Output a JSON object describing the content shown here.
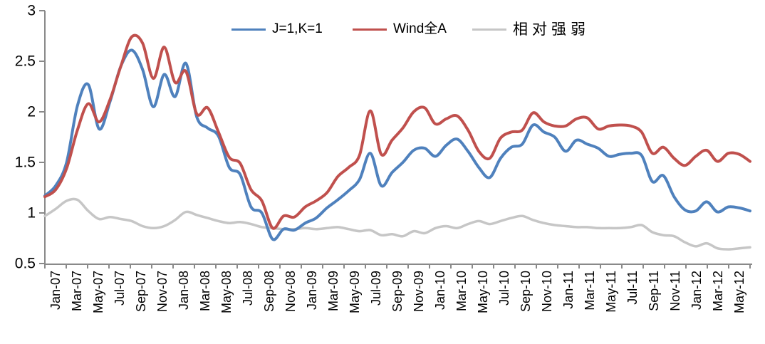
{
  "page": {
    "background": "#FFFFFF"
  },
  "chart_data": {
    "type": "line",
    "title": "",
    "xlabel": "",
    "ylabel": "",
    "grid": false,
    "legend_position": "top-center",
    "axis_color": "#898989",
    "tick_label_color": "#000000",
    "ylim": [
      0.5,
      3
    ],
    "y_ticks": [
      3,
      2.5,
      2,
      1.5,
      1,
      0.5
    ],
    "y_tick_labels": [
      "3",
      "2.5",
      "2",
      "1.5",
      "1",
      "0.5"
    ],
    "x_unit": "month",
    "x_range": [
      "Jan-07",
      "Jun-12"
    ],
    "x_tick_labels": [
      "Jan-07",
      "Mar-07",
      "May-07",
      "Jul-07",
      "Sep-07",
      "Nov-07",
      "Jan-08",
      "Mar-08",
      "May-08",
      "Jul-08",
      "Sep-08",
      "Nov-08",
      "Jan-09",
      "Mar-09",
      "May-09",
      "Jul-09",
      "Sep-09",
      "Nov-09",
      "Jan-10",
      "Mar-10",
      "May-10",
      "Jul-10",
      "Sep-10",
      "Nov-10",
      "Jan-11",
      "Mar-11",
      "May-11",
      "Jul-11",
      "Sep-11",
      "Nov-11",
      "Jan-12",
      "Mar-12",
      "May-12"
    ],
    "months": [
      "Jan-07",
      "Feb-07",
      "Mar-07",
      "Apr-07",
      "May-07",
      "Jun-07",
      "Jul-07",
      "Aug-07",
      "Sep-07",
      "Oct-07",
      "Nov-07",
      "Dec-07",
      "Jan-08",
      "Feb-08",
      "Mar-08",
      "Apr-08",
      "May-08",
      "Jun-08",
      "Jul-08",
      "Aug-08",
      "Sep-08",
      "Oct-08",
      "Nov-08",
      "Dec-08",
      "Jan-09",
      "Feb-09",
      "Mar-09",
      "Apr-09",
      "May-09",
      "Jun-09",
      "Jul-09",
      "Aug-09",
      "Sep-09",
      "Oct-09",
      "Nov-09",
      "Dec-09",
      "Jan-10",
      "Feb-10",
      "Mar-10",
      "Apr-10",
      "May-10",
      "Jun-10",
      "Jul-10",
      "Aug-10",
      "Sep-10",
      "Oct-10",
      "Nov-10",
      "Dec-10",
      "Jan-11",
      "Feb-11",
      "Mar-11",
      "Apr-11",
      "May-11",
      "Jun-11",
      "Jul-11",
      "Aug-11",
      "Sep-11",
      "Oct-11",
      "Nov-11",
      "Dec-11",
      "Jan-12",
      "Feb-12",
      "Mar-12",
      "Apr-12",
      "May-12",
      "Jun-12"
    ],
    "series": [
      {
        "key": "j1k1",
        "name": "J=1,K=1",
        "color": "#4F81BD",
        "line_width": 4,
        "values": [
          1.17,
          1.27,
          1.5,
          2.06,
          2.27,
          1.83,
          2.1,
          2.45,
          2.61,
          2.42,
          2.05,
          2.37,
          2.15,
          2.48,
          1.95,
          1.84,
          1.76,
          1.45,
          1.38,
          1.06,
          1.0,
          0.74,
          0.84,
          0.83,
          0.9,
          0.95,
          1.05,
          1.13,
          1.22,
          1.33,
          1.59,
          1.27,
          1.4,
          1.5,
          1.62,
          1.64,
          1.56,
          1.67,
          1.73,
          1.61,
          1.45,
          1.35,
          1.54,
          1.65,
          1.68,
          1.87,
          1.8,
          1.75,
          1.61,
          1.72,
          1.68,
          1.64,
          1.56,
          1.58,
          1.59,
          1.57,
          1.31,
          1.37,
          1.16,
          1.03,
          1.02,
          1.11,
          1.01,
          1.06,
          1.05,
          1.02
        ]
      },
      {
        "key": "wind-quan-a",
        "name": "Wind全A",
        "color": "#C0504D",
        "line_width": 4,
        "values": [
          1.16,
          1.23,
          1.44,
          1.82,
          2.08,
          1.9,
          2.12,
          2.45,
          2.74,
          2.68,
          2.33,
          2.64,
          2.29,
          2.4,
          1.98,
          2.04,
          1.8,
          1.55,
          1.49,
          1.23,
          1.12,
          0.85,
          0.97,
          0.96,
          1.06,
          1.12,
          1.2,
          1.36,
          1.45,
          1.57,
          2.01,
          1.58,
          1.72,
          1.84,
          2.0,
          2.04,
          1.88,
          1.93,
          1.96,
          1.82,
          1.61,
          1.54,
          1.74,
          1.8,
          1.82,
          1.99,
          1.9,
          1.86,
          1.86,
          1.93,
          1.94,
          1.83,
          1.86,
          1.87,
          1.86,
          1.8,
          1.59,
          1.65,
          1.54,
          1.47,
          1.56,
          1.62,
          1.51,
          1.59,
          1.58,
          1.51
        ]
      },
      {
        "key": "relative-strength",
        "name": "相对强弱",
        "color": "#C6C6C6",
        "line_width": 3.5,
        "values": [
          0.97,
          1.04,
          1.12,
          1.13,
          1.02,
          0.94,
          0.96,
          0.94,
          0.92,
          0.87,
          0.85,
          0.87,
          0.93,
          1.01,
          0.98,
          0.95,
          0.92,
          0.9,
          0.91,
          0.89,
          0.86,
          0.85,
          0.84,
          0.84,
          0.85,
          0.84,
          0.85,
          0.86,
          0.84,
          0.82,
          0.83,
          0.78,
          0.79,
          0.77,
          0.82,
          0.8,
          0.85,
          0.87,
          0.85,
          0.89,
          0.92,
          0.89,
          0.92,
          0.95,
          0.97,
          0.93,
          0.9,
          0.88,
          0.87,
          0.86,
          0.86,
          0.85,
          0.85,
          0.85,
          0.86,
          0.88,
          0.81,
          0.78,
          0.77,
          0.71,
          0.67,
          0.7,
          0.65,
          0.64,
          0.65,
          0.66
        ]
      }
    ]
  }
}
